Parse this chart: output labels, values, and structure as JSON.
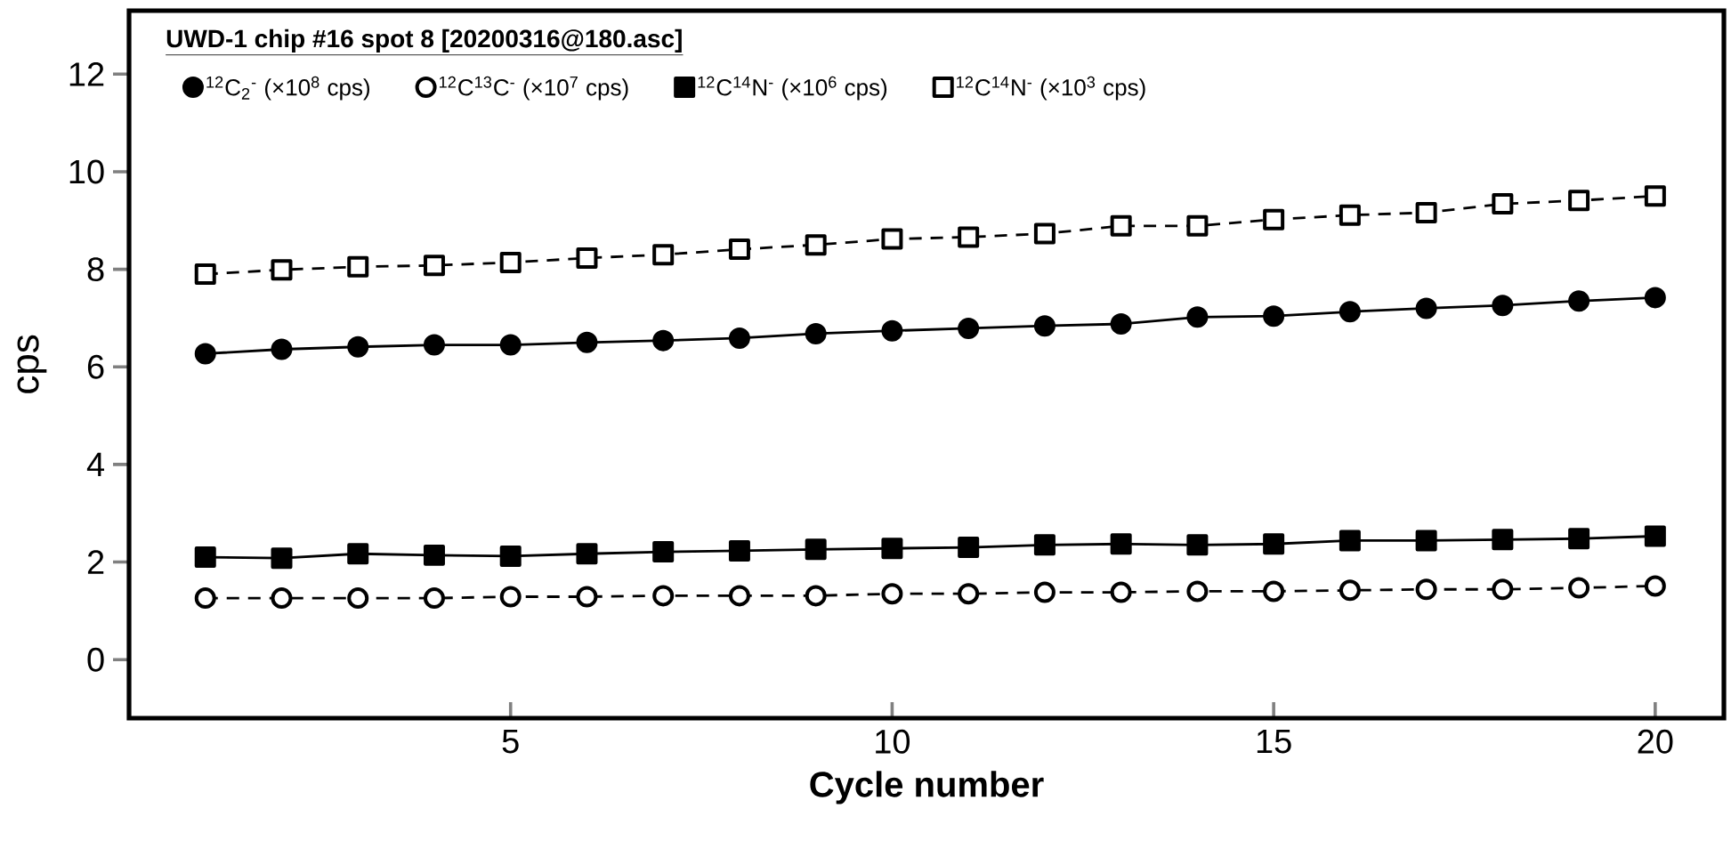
{
  "chart_data": {
    "type": "line",
    "title": "UWD-1 chip #16 spot 8 [20200316@180.asc]",
    "xlabel": "Cycle number",
    "ylabel": "cps",
    "x": [
      1,
      2,
      3,
      4,
      5,
      6,
      7,
      8,
      9,
      10,
      11,
      12,
      13,
      14,
      15,
      16,
      17,
      18,
      19,
      20
    ],
    "xlim": [
      0,
      20.9
    ],
    "ylim": [
      -1.2,
      13.3
    ],
    "xticks": [
      5,
      10,
      15,
      20
    ],
    "yticks": [
      0,
      2,
      4,
      6,
      8,
      10,
      12
    ],
    "legend": "top left",
    "grid": false,
    "series": [
      {
        "name": "$^{12}$C$_{2}$$^{-}$ (×10$^{8}$ cps)",
        "color": "#000000",
        "marker": "circle",
        "line_style": "solid",
        "values": [
          6.27,
          6.36,
          6.41,
          6.45,
          6.45,
          6.5,
          6.54,
          6.59,
          6.68,
          6.74,
          6.79,
          6.84,
          6.88,
          7.02,
          7.04,
          7.13,
          7.2,
          7.26,
          7.35,
          7.42
        ]
      },
      {
        "name": "$^{12}$C$^{13}$C$^{-}$ (×10$^{7}$ cps)",
        "color": "#000000",
        "marker": "circle",
        "line_style": "dashed",
        "values": [
          1.26,
          1.26,
          1.26,
          1.26,
          1.29,
          1.29,
          1.31,
          1.31,
          1.31,
          1.35,
          1.35,
          1.38,
          1.38,
          1.4,
          1.4,
          1.42,
          1.44,
          1.44,
          1.47,
          1.51
        ]
      },
      {
        "name": "$^{12}$C$^{14}$N$^{-}$ (×10$^{6}$ cps)",
        "color": "#000000",
        "marker": "square",
        "line_style": "solid",
        "values": [
          2.1,
          2.08,
          2.17,
          2.14,
          2.12,
          2.17,
          2.21,
          2.23,
          2.26,
          2.28,
          2.3,
          2.35,
          2.37,
          2.35,
          2.37,
          2.44,
          2.44,
          2.46,
          2.48,
          2.53
        ]
      },
      {
        "name": "$^{12}$C$^{14}$N$^{-}$ (×10$^{3}$ cps)",
        "color": "#000000",
        "marker": "square",
        "line_style": "dashed",
        "values": [
          7.9,
          7.99,
          8.05,
          8.08,
          8.14,
          8.23,
          8.3,
          8.41,
          8.5,
          8.62,
          8.66,
          8.73,
          8.89,
          8.89,
          9.02,
          9.11,
          9.16,
          9.34,
          9.41,
          9.5
        ]
      }
    ]
  }
}
